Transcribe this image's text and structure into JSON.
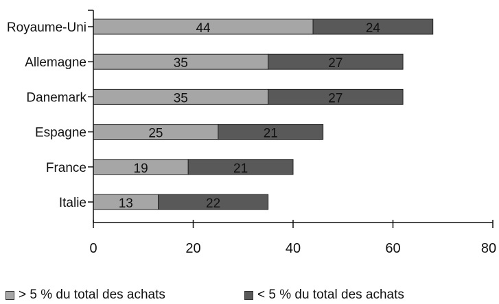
{
  "chart_data": {
    "type": "bar",
    "orientation": "horizontal",
    "stacked": true,
    "categories": [
      "Royaume-Uni",
      "Allemagne",
      "Danemark",
      "Espagne",
      "France",
      "Italie"
    ],
    "series": [
      {
        "name": "> 5 % du total des achats",
        "values": [
          44,
          35,
          35,
          25,
          19,
          13
        ],
        "color": "#a6a6a6"
      },
      {
        "name": "< 5 % du total des achats",
        "values": [
          24,
          27,
          27,
          21,
          21,
          22
        ],
        "color": "#595959"
      }
    ],
    "xlim": [
      0,
      80
    ],
    "xticks": [
      "0",
      "20",
      "40",
      "60",
      "80"
    ],
    "data_labels": true,
    "grid": false,
    "legend_position": "bottom"
  }
}
